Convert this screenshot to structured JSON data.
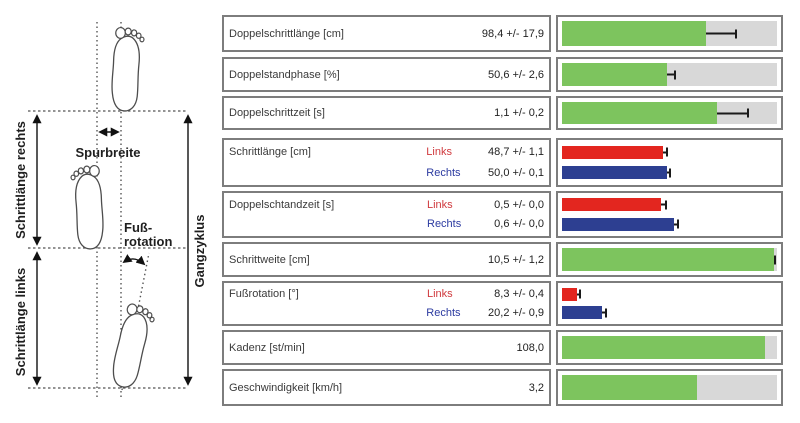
{
  "diagram": {
    "labels": {
      "spurbreite": "Spurbreite",
      "schrittlaenge_rechts": "Schrittlänge rechts",
      "schrittlaenge_links": "Schrittlänge links",
      "gangzyklus": "Gangzyklus",
      "fussrotation_line1": "Fuß-",
      "fussrotation_line2": "rotation"
    }
  },
  "colors": {
    "green": "#7dc45e",
    "red": "#e3261f",
    "blue": "#2d3f91",
    "track": "#d8d8d8",
    "links_text": "#d03a3e",
    "rechts_text": "#2b3aa0"
  },
  "rows": [
    {
      "label": "Doppelschrittlänge [cm]",
      "value": "98,4 +/- 17,9",
      "bar": {
        "pct": 67,
        "err_pct": 13.5
      }
    },
    {
      "label": "Doppelstandphase [%]",
      "value": "50,6 +/- 2,6",
      "bar": {
        "pct": 49,
        "err_pct": 3
      }
    },
    {
      "label": "Doppelschrittzeit [s]",
      "value": "1,1 +/- 0,2",
      "bar": {
        "pct": 72,
        "err_pct": 14
      }
    },
    {
      "label": "Schrittlänge [cm]",
      "links": {
        "side": "Links",
        "value": "48,7 +/- 1,1",
        "bar": {
          "pct": 47,
          "err_pct": 1.5
        }
      },
      "rechts": {
        "side": "Rechts",
        "value": "50,0 +/- 0,1",
        "bar": {
          "pct": 49,
          "err_pct": 1
        }
      }
    },
    {
      "label": "Doppelschtandzeit [s]",
      "links": {
        "side": "Links",
        "value": "0,5 +/- 0,0",
        "bar": {
          "pct": 46,
          "err_pct": 2
        }
      },
      "rechts": {
        "side": "Rechts",
        "value": "0,6 +/- 0,0",
        "bar": {
          "pct": 52,
          "err_pct": 1.5
        }
      }
    },
    {
      "label": "Schrittweite [cm]",
      "value": "10,5 +/- 1,2",
      "bar": {
        "pct": 98.5,
        "err_pct": 0
      }
    },
    {
      "label": "Fußrotation [°]",
      "links": {
        "side": "Links",
        "value": "8,3 +/- 0,4",
        "bar": {
          "pct": 7,
          "err_pct": 1
        }
      },
      "rechts": {
        "side": "Rechts",
        "value": "20,2 +/- 0,9",
        "bar": {
          "pct": 18.5,
          "err_pct": 1.5
        }
      }
    },
    {
      "label": "Kadenz [st/min]",
      "value": "108,0",
      "bar": {
        "pct": 94.5
      }
    },
    {
      "label": "Geschwindigkeit [km/h]",
      "value": "3,2",
      "bar": {
        "pct": 63
      }
    }
  ]
}
